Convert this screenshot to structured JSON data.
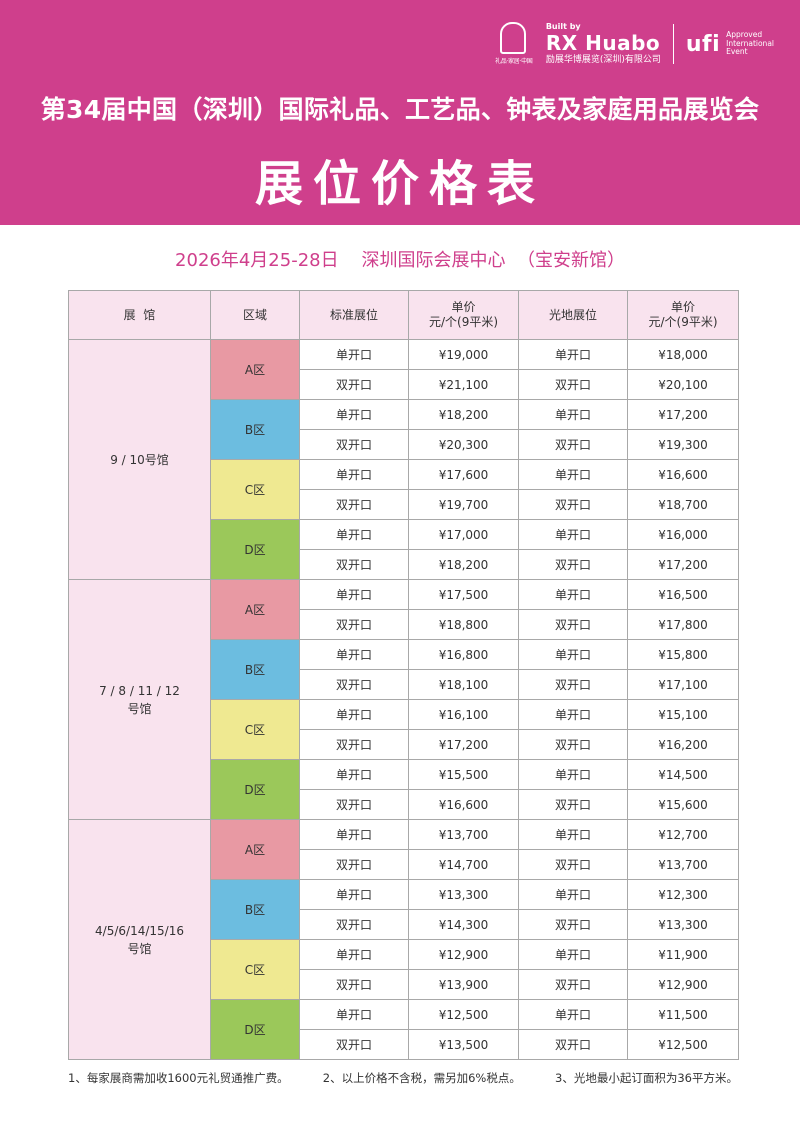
{
  "header": {
    "logo_gh_text": "礼品·家居·中国",
    "rx_built_by": "Built by",
    "rx_brand": "RX Huabo",
    "rx_company": "励展华博展览(深圳)有限公司",
    "ufi_word": "ufi",
    "ufi_approved": [
      "Approved",
      "International",
      "Event"
    ],
    "conference_title": "第34届中国（深圳）国际礼品、工艺品、钟表及家庭用品展览会",
    "main_title": "展位价格表"
  },
  "subtitle": "2026年4月25-28日    深圳国际会展中心  （宝安新馆）",
  "table": {
    "headers": [
      "展  馆",
      "区域",
      "标准展位",
      "单价\n元/个(9平米)",
      "光地展位",
      "单价\n元/个(9平米)"
    ],
    "halls": [
      {
        "name": "9 / 10号馆",
        "zones": [
          {
            "label": "A区",
            "rows": [
              {
                "std_type": "单开口",
                "std_price": "¥19,000",
                "raw_type": "单开口",
                "raw_price": "¥18,000"
              },
              {
                "std_type": "双开口",
                "std_price": "¥21,100",
                "raw_type": "双开口",
                "raw_price": "¥20,100"
              }
            ]
          },
          {
            "label": "B区",
            "rows": [
              {
                "std_type": "单开口",
                "std_price": "¥18,200",
                "raw_type": "单开口",
                "raw_price": "¥17,200"
              },
              {
                "std_type": "双开口",
                "std_price": "¥20,300",
                "raw_type": "双开口",
                "raw_price": "¥19,300"
              }
            ]
          },
          {
            "label": "C区",
            "rows": [
              {
                "std_type": "单开口",
                "std_price": "¥17,600",
                "raw_type": "单开口",
                "raw_price": "¥16,600"
              },
              {
                "std_type": "双开口",
                "std_price": "¥19,700",
                "raw_type": "双开口",
                "raw_price": "¥18,700"
              }
            ]
          },
          {
            "label": "D区",
            "rows": [
              {
                "std_type": "单开口",
                "std_price": "¥17,000",
                "raw_type": "单开口",
                "raw_price": "¥16,000"
              },
              {
                "std_type": "双开口",
                "std_price": "¥18,200",
                "raw_type": "双开口",
                "raw_price": "¥17,200"
              }
            ]
          }
        ]
      },
      {
        "name": "7 / 8 / 11 / 12\n号馆",
        "zones": [
          {
            "label": "A区",
            "rows": [
              {
                "std_type": "单开口",
                "std_price": "¥17,500",
                "raw_type": "单开口",
                "raw_price": "¥16,500"
              },
              {
                "std_type": "双开口",
                "std_price": "¥18,800",
                "raw_type": "双开口",
                "raw_price": "¥17,800"
              }
            ]
          },
          {
            "label": "B区",
            "rows": [
              {
                "std_type": "单开口",
                "std_price": "¥16,800",
                "raw_type": "单开口",
                "raw_price": "¥15,800"
              },
              {
                "std_type": "双开口",
                "std_price": "¥18,100",
                "raw_type": "双开口",
                "raw_price": "¥17,100"
              }
            ]
          },
          {
            "label": "C区",
            "rows": [
              {
                "std_type": "单开口",
                "std_price": "¥16,100",
                "raw_type": "单开口",
                "raw_price": "¥15,100"
              },
              {
                "std_type": "双开口",
                "std_price": "¥17,200",
                "raw_type": "双开口",
                "raw_price": "¥16,200"
              }
            ]
          },
          {
            "label": "D区",
            "rows": [
              {
                "std_type": "单开口",
                "std_price": "¥15,500",
                "raw_type": "单开口",
                "raw_price": "¥14,500"
              },
              {
                "std_type": "双开口",
                "std_price": "¥16,600",
                "raw_type": "双开口",
                "raw_price": "¥15,600"
              }
            ]
          }
        ]
      },
      {
        "name": "4/5/6/14/15/16\n号馆",
        "zones": [
          {
            "label": "A区",
            "rows": [
              {
                "std_type": "单开口",
                "std_price": "¥13,700",
                "raw_type": "单开口",
                "raw_price": "¥12,700"
              },
              {
                "std_type": "双开口",
                "std_price": "¥14,700",
                "raw_type": "双开口",
                "raw_price": "¥13,700"
              }
            ]
          },
          {
            "label": "B区",
            "rows": [
              {
                "std_type": "单开口",
                "std_price": "¥13,300",
                "raw_type": "单开口",
                "raw_price": "¥12,300"
              },
              {
                "std_type": "双开口",
                "std_price": "¥14,300",
                "raw_type": "双开口",
                "raw_price": "¥13,300"
              }
            ]
          },
          {
            "label": "C区",
            "rows": [
              {
                "std_type": "单开口",
                "std_price": "¥12,900",
                "raw_type": "单开口",
                "raw_price": "¥11,900"
              },
              {
                "std_type": "双开口",
                "std_price": "¥13,900",
                "raw_type": "双开口",
                "raw_price": "¥12,900"
              }
            ]
          },
          {
            "label": "D区",
            "rows": [
              {
                "std_type": "单开口",
                "std_price": "¥12,500",
                "raw_type": "单开口",
                "raw_price": "¥11,500"
              },
              {
                "std_type": "双开口",
                "std_price": "¥13,500",
                "raw_type": "双开口",
                "raw_price": "¥12,500"
              }
            ]
          }
        ]
      }
    ]
  },
  "notes": [
    "1、每家展商需加收1600元礼贸通推广费。",
    "2、以上价格不含税，需另加6%税点。",
    "3、光地最小起订面积为36平方米。"
  ],
  "colors": {
    "brand_pink": "#cf3f8c",
    "header_cell_bg": "#f9e3ee",
    "zone_a": "#e899a3",
    "zone_b": "#6cbde0",
    "zone_c": "#efe991",
    "zone_d": "#9bc85a"
  }
}
